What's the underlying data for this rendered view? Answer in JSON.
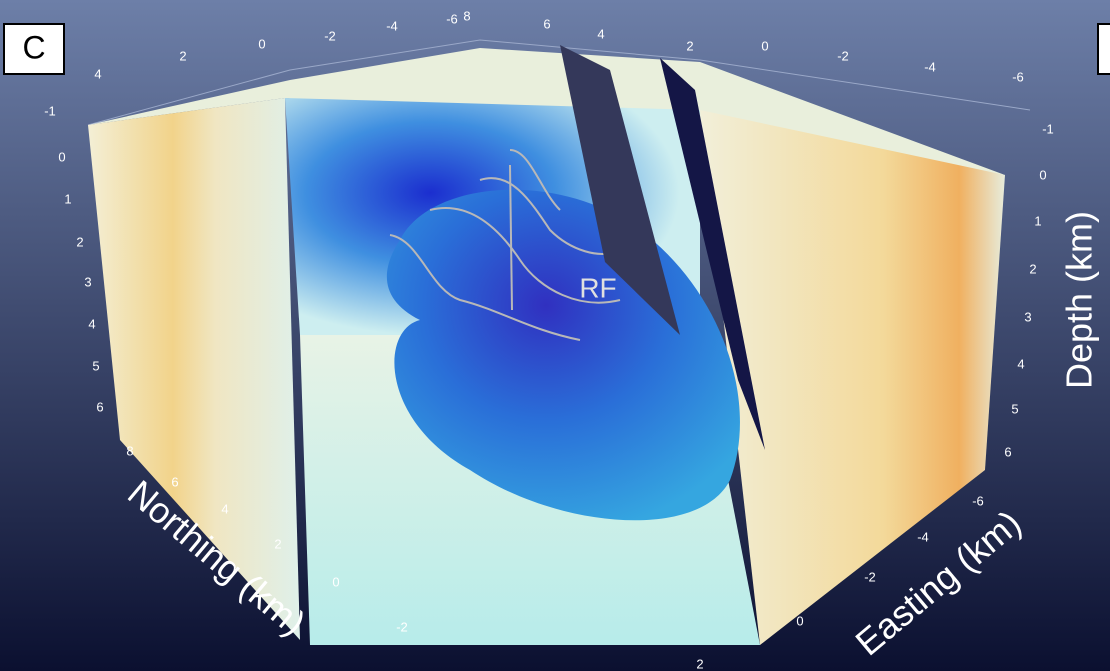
{
  "panel_label": "C",
  "annotation": "RF",
  "axes": {
    "northing": {
      "title": "Northing (km)",
      "top_ticks": [
        4,
        2,
        0,
        -2,
        -4,
        -6
      ],
      "bottom_ticks": [
        8,
        6,
        4,
        2,
        0,
        -2
      ]
    },
    "easting": {
      "title": "Easting (km)",
      "top_ticks": [
        8,
        6,
        4,
        2,
        0,
        -2,
        -4,
        -6
      ],
      "bottom_ticks": [
        -6,
        -4,
        -2,
        0,
        2
      ]
    },
    "depth": {
      "title": "Depth (km)",
      "left_ticks": [
        -1,
        0,
        1,
        2,
        3,
        4,
        5,
        6
      ],
      "right_ticks": [
        -1,
        0,
        1,
        2,
        3,
        4,
        5,
        6
      ]
    }
  }
}
